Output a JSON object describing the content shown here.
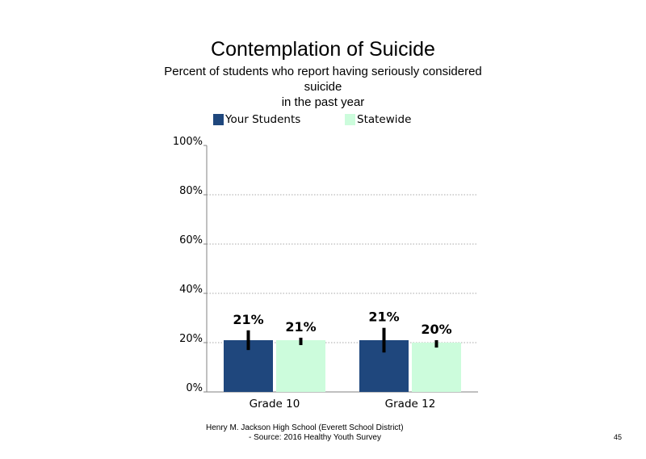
{
  "chart_data": {
    "type": "bar",
    "title": "Contemplation of Suicide",
    "subtitle_lines": [
      "Percent of students who report having seriously considered",
      "suicide",
      "in the past year"
    ],
    "categories": [
      "Grade 10",
      "Grade 12"
    ],
    "series": [
      {
        "name": "Your Students",
        "color": "#1f477d",
        "values": [
          21,
          21
        ],
        "data_labels": [
          "21%",
          "21%"
        ],
        "error_low": [
          17,
          16
        ],
        "error_high": [
          25,
          26
        ]
      },
      {
        "name": "Statewide",
        "color": "#ccfcdc",
        "values": [
          21,
          20
        ],
        "data_labels": [
          "21%",
          "20%"
        ],
        "error_low": [
          19,
          18
        ],
        "error_high": [
          22,
          21
        ]
      }
    ],
    "ylim": [
      0,
      100
    ],
    "y_ticks": [
      0,
      20,
      40,
      60,
      80,
      100
    ],
    "y_tick_labels": [
      "0%",
      "20%",
      "40%",
      "60%",
      "80%",
      "100%"
    ],
    "gridlines": "dotted at 20%, 40%, 60%, 80%",
    "legend_position": "top"
  },
  "footer": {
    "line1": "Henry M. Jackson High School (Everett School District)",
    "line2": "- Source: 2016 Healthy Youth Survey"
  },
  "page_number": "45"
}
